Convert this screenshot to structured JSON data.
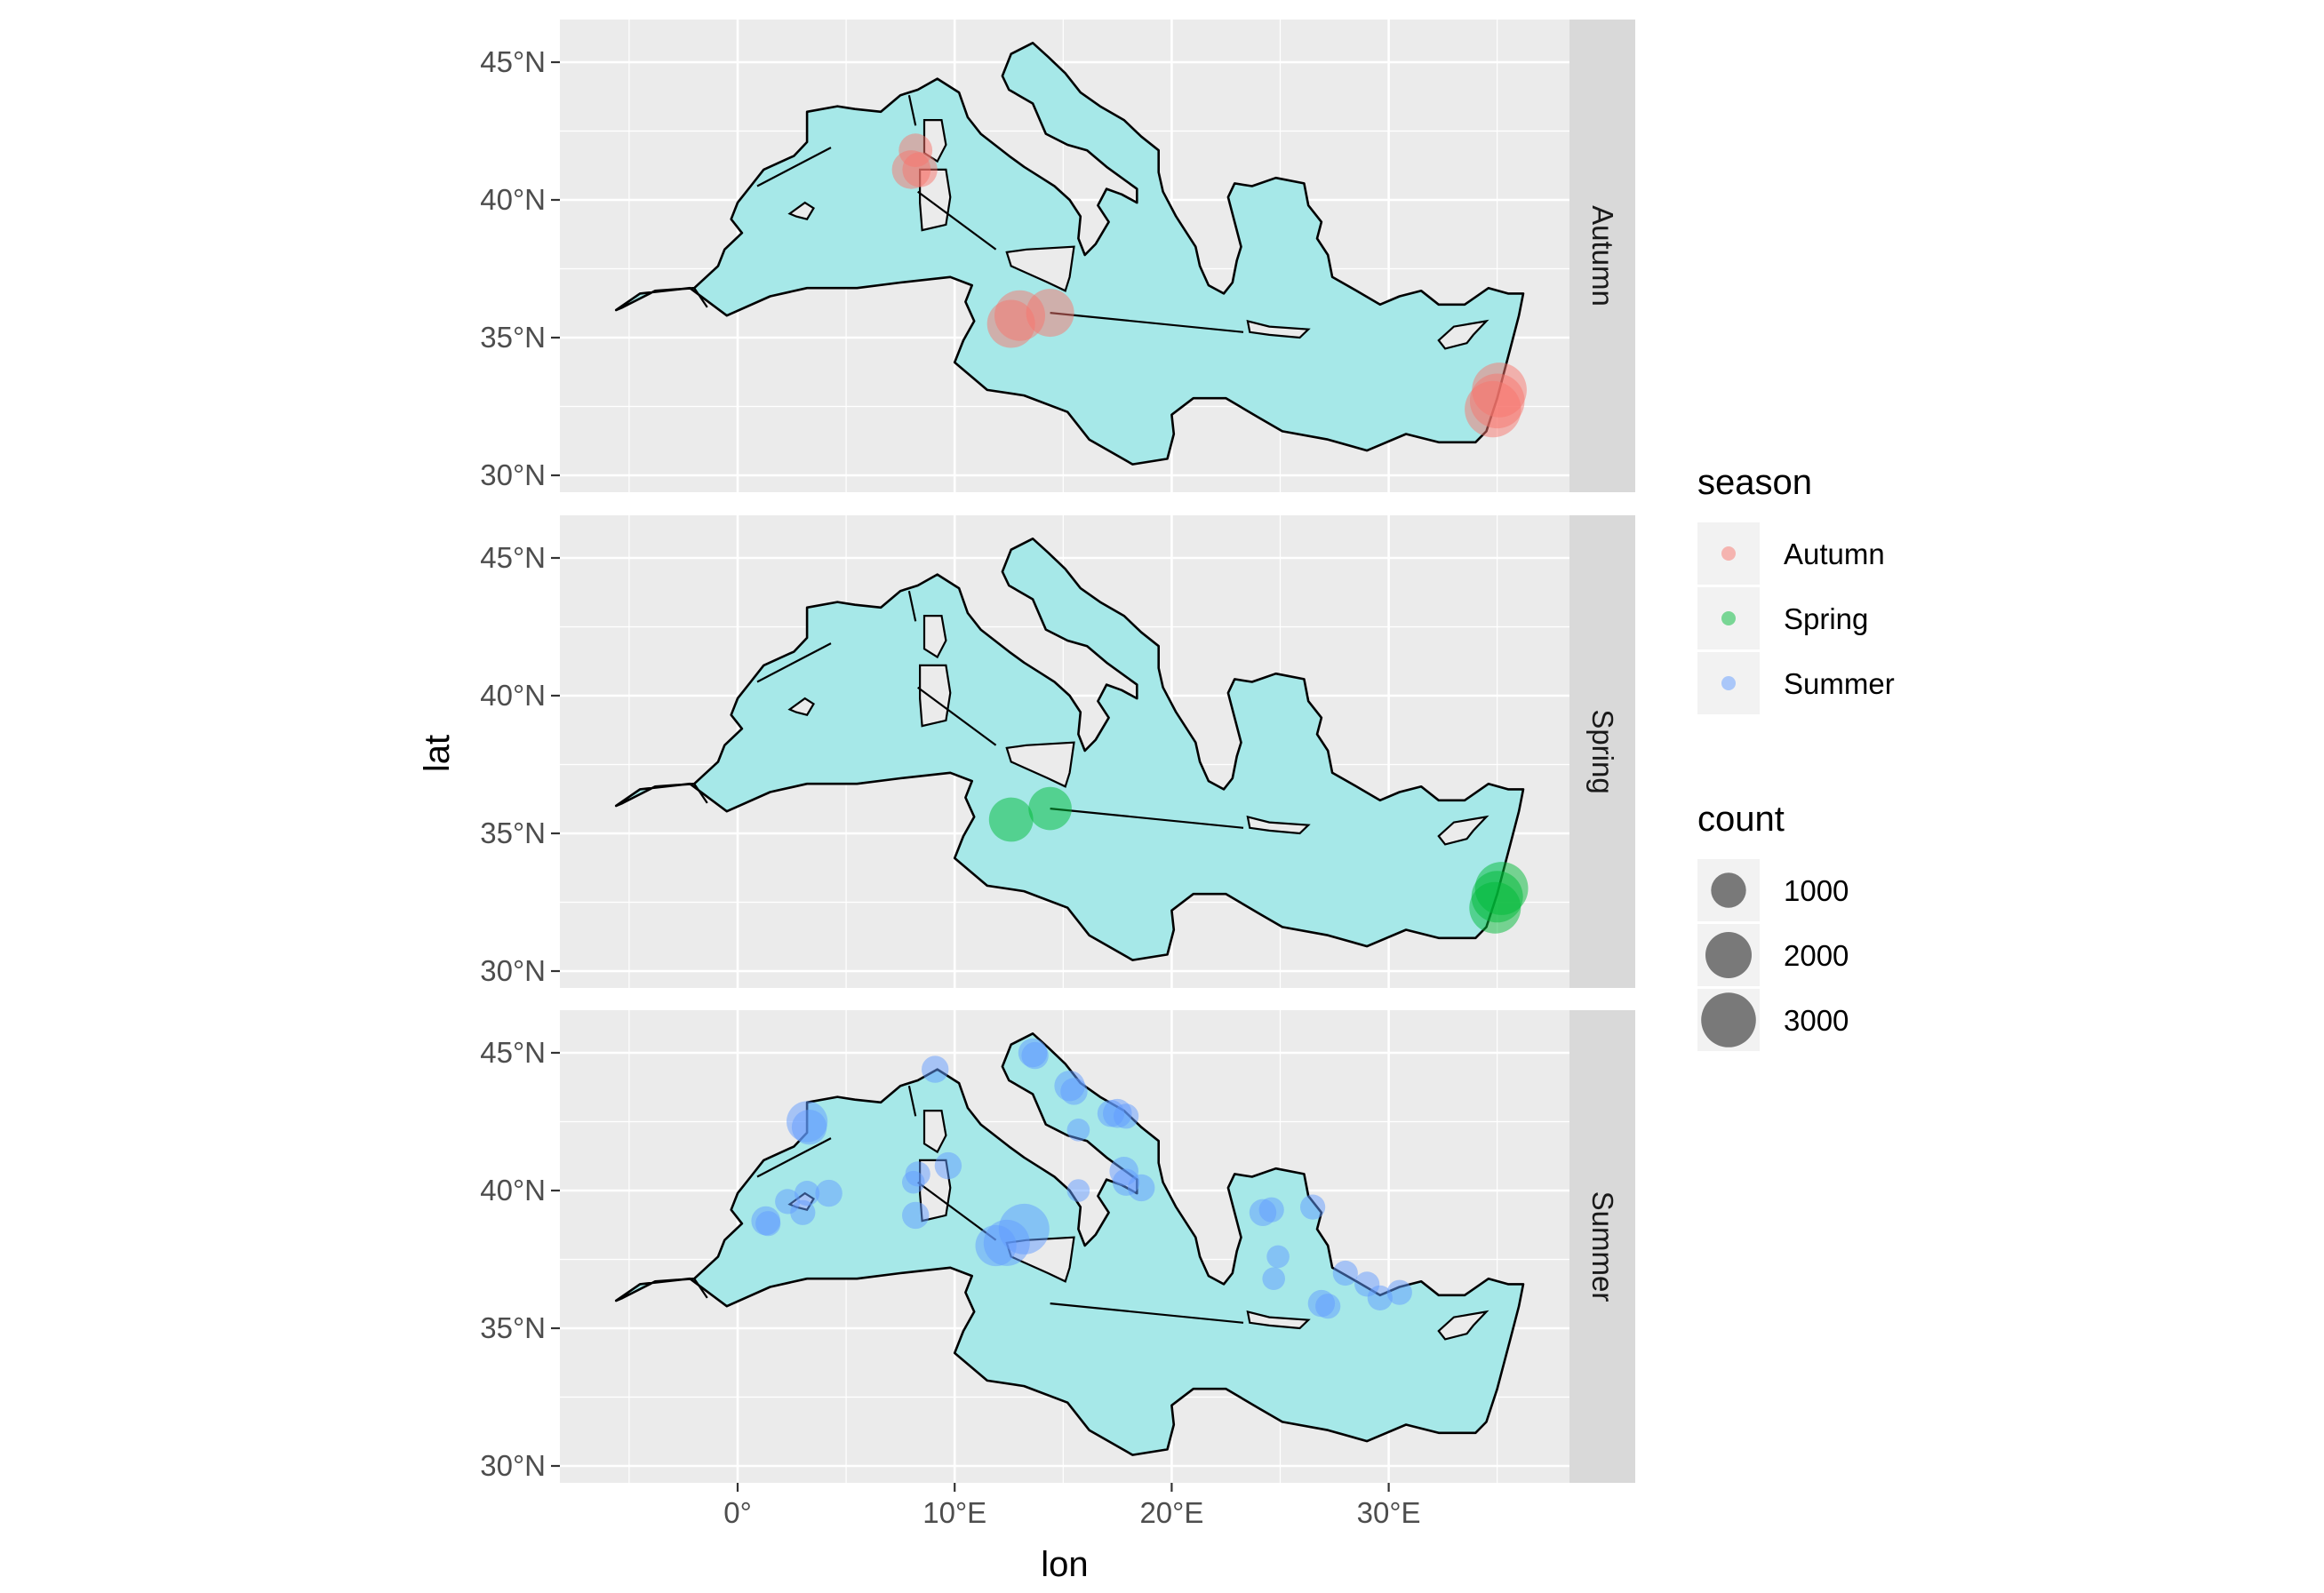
{
  "chart_data": {
    "type": "scatter",
    "subtype": "faceted map with bubble points",
    "xlabel": "lon",
    "ylabel": "lat",
    "xlim": [
      -8.5,
      41
    ],
    "ylim": [
      29.3,
      46.6
    ],
    "x_ticks": [
      0,
      10,
      20,
      30
    ],
    "x_tick_labels": [
      "0°",
      "10°E",
      "20°E",
      "30°E"
    ],
    "y_ticks": [
      30,
      35,
      40,
      45
    ],
    "y_tick_labels": [
      "30°N",
      "35°N",
      "40°N",
      "45°N"
    ],
    "grid": true,
    "facet_panel_bg": "#ebebeb",
    "sea_fill": "#a6e8e8",
    "colors": {
      "Autumn": "#f8766d",
      "Spring": "#00ba38",
      "Summer": "#619cff"
    },
    "legends": {
      "color": {
        "title": "season",
        "entries": [
          {
            "label": "Autumn",
            "color": "#f8766d"
          },
          {
            "label": "Spring",
            "color": "#00ba38"
          },
          {
            "label": "Summer",
            "color": "#619cff"
          }
        ]
      },
      "size": {
        "title": "count",
        "entries": [
          {
            "label": "1000",
            "value": 1000
          },
          {
            "label": "2000",
            "value": 2000
          },
          {
            "label": "3000",
            "value": 3000
          }
        ]
      },
      "placement": "right"
    },
    "facets": [
      {
        "label": "Autumn",
        "points": [
          {
            "lon": 8.2,
            "lat": 41.8,
            "count": 900
          },
          {
            "lon": 8.0,
            "lat": 41.1,
            "count": 1300
          },
          {
            "lon": 8.4,
            "lat": 41.1,
            "count": 1000
          },
          {
            "lon": 12.6,
            "lat": 35.5,
            "count": 2200
          },
          {
            "lon": 13.0,
            "lat": 35.8,
            "count": 2500
          },
          {
            "lon": 14.4,
            "lat": 35.9,
            "count": 2200
          },
          {
            "lon": 35.1,
            "lat": 33.1,
            "count": 3000
          },
          {
            "lon": 35.0,
            "lat": 32.7,
            "count": 3000
          },
          {
            "lon": 34.8,
            "lat": 32.4,
            "count": 3200
          }
        ]
      },
      {
        "label": "Spring",
        "points": [
          {
            "lon": 12.6,
            "lat": 35.5,
            "count": 1800
          },
          {
            "lon": 14.4,
            "lat": 35.9,
            "count": 1700
          },
          {
            "lon": 35.2,
            "lat": 33.0,
            "count": 2800
          },
          {
            "lon": 35.0,
            "lat": 32.7,
            "count": 2600
          },
          {
            "lon": 34.9,
            "lat": 32.3,
            "count": 2600
          }
        ]
      },
      {
        "label": "Summer",
        "points": [
          {
            "lon": 9.1,
            "lat": 44.4,
            "count": 500
          },
          {
            "lon": 13.6,
            "lat": 45.0,
            "count": 600
          },
          {
            "lon": 13.7,
            "lat": 44.9,
            "count": 500
          },
          {
            "lon": 15.3,
            "lat": 43.8,
            "count": 700
          },
          {
            "lon": 15.5,
            "lat": 43.6,
            "count": 500
          },
          {
            "lon": 15.7,
            "lat": 42.2,
            "count": 300
          },
          {
            "lon": 17.2,
            "lat": 42.8,
            "count": 500
          },
          {
            "lon": 17.5,
            "lat": 42.8,
            "count": 600
          },
          {
            "lon": 17.9,
            "lat": 42.7,
            "count": 400
          },
          {
            "lon": 17.8,
            "lat": 40.7,
            "count": 600
          },
          {
            "lon": 17.9,
            "lat": 40.3,
            "count": 500
          },
          {
            "lon": 18.6,
            "lat": 40.1,
            "count": 500
          },
          {
            "lon": 3.2,
            "lat": 42.5,
            "count": 1500
          },
          {
            "lon": 3.3,
            "lat": 42.3,
            "count": 1000
          },
          {
            "lon": 4.2,
            "lat": 39.9,
            "count": 500
          },
          {
            "lon": 3.2,
            "lat": 39.9,
            "count": 400
          },
          {
            "lon": 2.3,
            "lat": 39.6,
            "count": 400
          },
          {
            "lon": 3.0,
            "lat": 39.2,
            "count": 400
          },
          {
            "lon": 1.3,
            "lat": 38.9,
            "count": 600
          },
          {
            "lon": 1.4,
            "lat": 38.8,
            "count": 400
          },
          {
            "lon": 9.7,
            "lat": 40.9,
            "count": 500
          },
          {
            "lon": 8.3,
            "lat": 40.6,
            "count": 400
          },
          {
            "lon": 8.1,
            "lat": 40.3,
            "count": 300
          },
          {
            "lon": 8.2,
            "lat": 39.1,
            "count": 500
          },
          {
            "lon": 15.7,
            "lat": 40.0,
            "count": 300
          },
          {
            "lon": 13.2,
            "lat": 38.6,
            "count": 2500
          },
          {
            "lon": 12.4,
            "lat": 38.1,
            "count": 2000
          },
          {
            "lon": 11.9,
            "lat": 38.0,
            "count": 1500
          },
          {
            "lon": 24.2,
            "lat": 39.2,
            "count": 500
          },
          {
            "lon": 24.6,
            "lat": 39.3,
            "count": 400
          },
          {
            "lon": 26.5,
            "lat": 39.4,
            "count": 400
          },
          {
            "lon": 24.9,
            "lat": 37.6,
            "count": 300
          },
          {
            "lon": 24.7,
            "lat": 36.8,
            "count": 300
          },
          {
            "lon": 26.9,
            "lat": 35.9,
            "count": 500
          },
          {
            "lon": 27.2,
            "lat": 35.8,
            "count": 400
          },
          {
            "lon": 28.0,
            "lat": 37.0,
            "count": 400
          },
          {
            "lon": 29.0,
            "lat": 36.6,
            "count": 400
          },
          {
            "lon": 29.6,
            "lat": 36.1,
            "count": 400
          },
          {
            "lon": 30.5,
            "lat": 36.3,
            "count": 400
          }
        ]
      }
    ]
  }
}
